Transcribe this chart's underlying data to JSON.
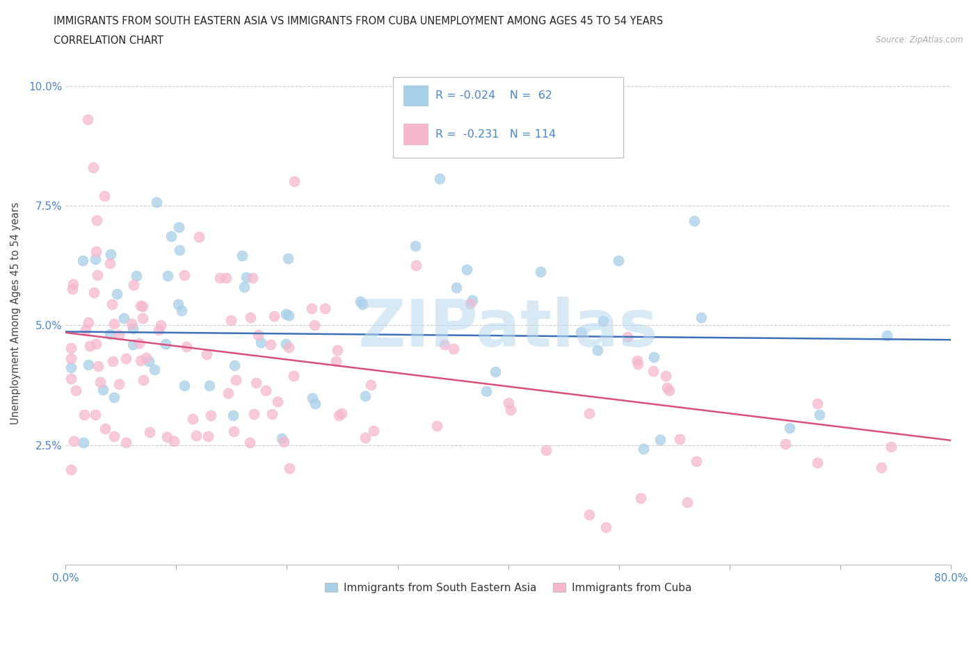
{
  "title_line1": "IMMIGRANTS FROM SOUTH EASTERN ASIA VS IMMIGRANTS FROM CUBA UNEMPLOYMENT AMONG AGES 45 TO 54 YEARS",
  "title_line2": "CORRELATION CHART",
  "source": "Source: ZipAtlas.com",
  "ylabel": "Unemployment Among Ages 45 to 54 years",
  "xlim": [
    0.0,
    0.8
  ],
  "ylim": [
    0.0,
    0.105
  ],
  "xticks": [
    0.0,
    0.1,
    0.2,
    0.3,
    0.4,
    0.5,
    0.6,
    0.7,
    0.8
  ],
  "yticks": [
    0.0,
    0.025,
    0.05,
    0.075,
    0.1
  ],
  "yticklabels": [
    "",
    "2.5%",
    "5.0%",
    "7.5%",
    "10.0%"
  ],
  "R_blue": -0.024,
  "N_blue": 62,
  "R_pink": -0.231,
  "N_pink": 114,
  "legend_label_blue": "Immigrants from South Eastern Asia",
  "legend_label_pink": "Immigrants from Cuba",
  "color_blue": "#a8cfe8",
  "color_pink": "#f5b8cd",
  "trendline_blue_color": "#3b6fba",
  "trendline_pink_color": "#d94f7a",
  "blue_trendline_start_y": 0.0487,
  "blue_trendline_end_y": 0.047,
  "pink_trendline_start_y": 0.0485,
  "pink_trendline_end_y": 0.026,
  "grid_color": "#cccccc",
  "watermark_color": "#b8d8f0",
  "title_fontsize": 11,
  "axis_label_color": "#4a86c8",
  "tick_color": "#555555"
}
